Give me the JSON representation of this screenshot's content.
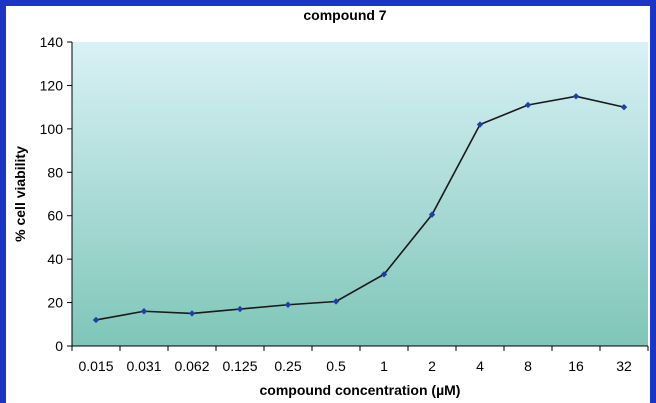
{
  "chart_data": {
    "type": "line",
    "title": "compound 7",
    "xlabel": "compound concentration (µM)",
    "ylabel": "% cell viability",
    "categories": [
      "0.015",
      "0.031",
      "0.062",
      "0.125",
      "0.25",
      "0.5",
      "1",
      "2",
      "4",
      "8",
      "16",
      "32"
    ],
    "series": [
      {
        "values": [
          12,
          16,
          15,
          17,
          19,
          20.5,
          33,
          60.5,
          102,
          111,
          115,
          110
        ]
      }
    ],
    "ylim": [
      0,
      140
    ],
    "yticks": [
      0,
      20,
      40,
      60,
      80,
      100,
      120,
      140
    ],
    "grid": false,
    "legend": "none"
  },
  "colors": {
    "frame": "#1a35c7",
    "plot_top": "#d9f1f6",
    "plot_bottom": "#7ec6b8",
    "line": "#1a1a1a",
    "marker": "#1f3fa8"
  }
}
